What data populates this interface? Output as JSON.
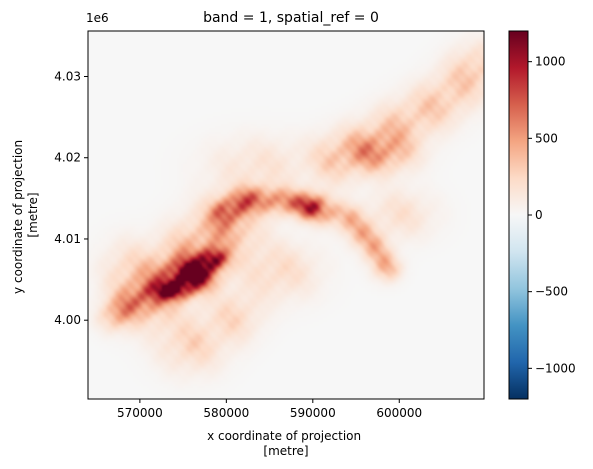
{
  "chart_data": {
    "type": "heatmap",
    "title": "band = 1, spatial_ref = 0",
    "xlabel": "x coordinate of projection\n[metre]",
    "ylabel": "y coordinate of projection\n[metre]",
    "y_offset_label": "1e6",
    "xlim": [
      564000,
      609800
    ],
    "ylim": [
      3990300,
      4035600
    ],
    "x_ticks": [
      570000,
      580000,
      590000,
      600000
    ],
    "x_tick_labels": [
      "570000",
      "580000",
      "590000",
      "600000"
    ],
    "y_ticks": [
      4000000,
      4010000,
      4020000,
      4030000
    ],
    "y_tick_labels": [
      "4.00",
      "4.01",
      "4.02",
      "4.03"
    ],
    "grid": false,
    "colorbar": {
      "colormap": "RdBu_r",
      "vmin": -1200,
      "vmax": 1200,
      "ticks": [
        -1000,
        -500,
        0,
        500,
        1000
      ],
      "tick_labels": [
        "−1000",
        "−500",
        "0",
        "500",
        "1000"
      ],
      "colors": [
        "#053061",
        "#2166ac",
        "#4393c3",
        "#92c5de",
        "#d1e5f0",
        "#f7f7f7",
        "#fddbc7",
        "#f4a582",
        "#d6604d",
        "#b2182b",
        "#67001f"
      ]
    },
    "background_value": 0,
    "features": [
      {
        "kind": "ridge",
        "points": [
          [
            567000,
            4000500
          ],
          [
            569000,
            4002000
          ],
          [
            571000,
            4003000
          ]
        ],
        "value": 350,
        "width": 1800
      },
      {
        "kind": "peak",
        "x": 575800,
        "y": 4005500,
        "value": 1100,
        "sx": 2600,
        "sy": 1800
      },
      {
        "kind": "peak",
        "x": 578500,
        "y": 4007500,
        "value": 1000,
        "sx": 1500,
        "sy": 1300
      },
      {
        "kind": "peak",
        "x": 574000,
        "y": 4003700,
        "value": 900,
        "sx": 1800,
        "sy": 1100
      },
      {
        "kind": "ridge",
        "points": [
          [
            571000,
            4003000
          ],
          [
            574000,
            4006000
          ],
          [
            577000,
            4009000
          ],
          [
            580000,
            4011500
          ]
        ],
        "value": 420,
        "width": 3600
      },
      {
        "kind": "ridge",
        "points": [
          [
            580000,
            4013500
          ],
          [
            583000,
            4015000
          ],
          [
            587000,
            4014500
          ],
          [
            590000,
            4014000
          ]
        ],
        "value": 550,
        "width": 1600
      },
      {
        "kind": "ridge",
        "points": [
          [
            590000,
            4014000
          ],
          [
            594000,
            4012500
          ],
          [
            597000,
            4009000
          ],
          [
            598500,
            4006500
          ]
        ],
        "value": 400,
        "width": 1600
      },
      {
        "kind": "ridge",
        "points": [
          [
            593000,
            4020000
          ],
          [
            597000,
            4022000
          ],
          [
            601000,
            4024500
          ],
          [
            605000,
            4027000
          ],
          [
            609000,
            4031000
          ]
        ],
        "value": 300,
        "width": 3000
      },
      {
        "kind": "peak",
        "x": 598000,
        "y": 4020500,
        "value": 350,
        "sx": 3800,
        "sy": 2400
      },
      {
        "kind": "peak",
        "x": 576000,
        "y": 3997000,
        "value": 250,
        "sx": 3800,
        "sy": 3400
      },
      {
        "kind": "peak",
        "x": 586000,
        "y": 4006000,
        "value": 220,
        "sx": 4500,
        "sy": 3500
      },
      {
        "kind": "peak",
        "x": 584000,
        "y": 4019000,
        "value": 160,
        "sx": 6000,
        "sy": 3500
      },
      {
        "kind": "peak",
        "x": 600000,
        "y": 4013000,
        "value": 180,
        "sx": 4000,
        "sy": 3000
      },
      {
        "kind": "peak",
        "x": 568500,
        "y": 4006500,
        "value": 160,
        "sx": 3000,
        "sy": 3500
      },
      {
        "kind": "peak",
        "x": 581000,
        "y": 4000500,
        "value": 220,
        "sx": 3000,
        "sy": 3000
      }
    ]
  }
}
